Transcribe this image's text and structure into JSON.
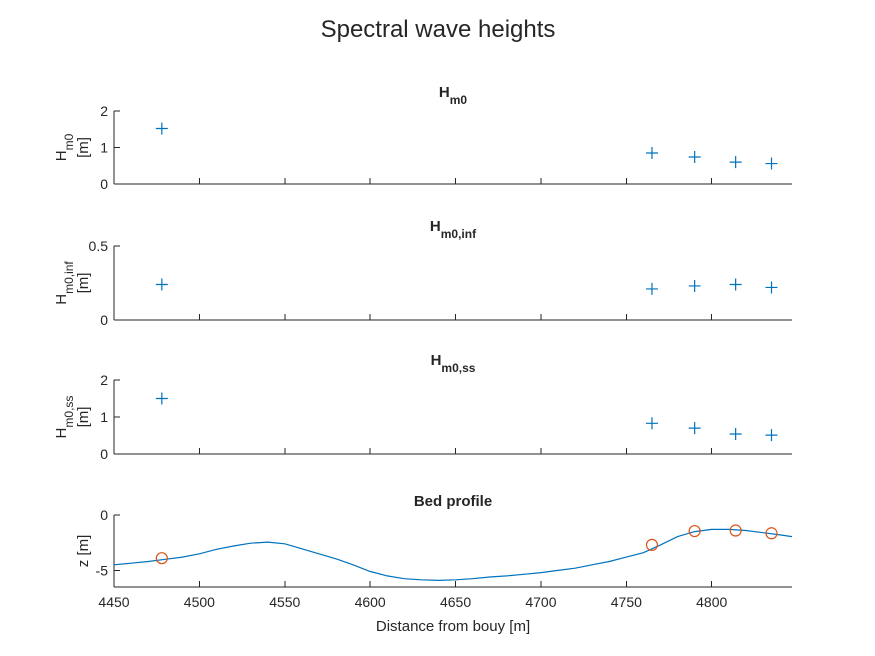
{
  "chart_data": {
    "suptitle": "Spectral wave heights",
    "xlabel": "Distance from bouy [m]",
    "xlim": [
      4450,
      4847
    ],
    "xticks": [
      4450,
      4500,
      4550,
      4600,
      4650,
      4700,
      4750,
      4800
    ],
    "colors": {
      "series": "#0072BD",
      "markers": "#D95319"
    },
    "subplots": [
      {
        "type": "scatter",
        "title_main": "H",
        "title_sub": "m0",
        "ylabel_main": "H",
        "ylabel_sub": "m0",
        "ylabel_unit": "[m]",
        "ylim": [
          0,
          2
        ],
        "yticks": [
          0,
          1,
          2
        ],
        "x": [
          4478,
          4765,
          4790,
          4814,
          4835
        ],
        "y": [
          1.52,
          0.85,
          0.74,
          0.6,
          0.56
        ]
      },
      {
        "type": "scatter",
        "title_main": "H",
        "title_sub": "m0,inf",
        "ylabel_main": "H",
        "ylabel_sub": "m0,inf",
        "ylabel_unit": "[m]",
        "ylim": [
          0,
          0.5
        ],
        "yticks": [
          0,
          0.5
        ],
        "x": [
          4478,
          4765,
          4790,
          4814,
          4835
        ],
        "y": [
          0.24,
          0.21,
          0.23,
          0.24,
          0.22
        ]
      },
      {
        "type": "scatter",
        "title_main": "H",
        "title_sub": "m0,ss",
        "ylabel_main": "H",
        "ylabel_sub": "m0,ss",
        "ylabel_unit": "[m]",
        "ylim": [
          0,
          2
        ],
        "yticks": [
          0,
          1,
          2
        ],
        "x": [
          4478,
          4765,
          4790,
          4814,
          4835
        ],
        "y": [
          1.5,
          0.83,
          0.7,
          0.54,
          0.51
        ]
      },
      {
        "type": "line",
        "title_main": "Bed profile",
        "title_sub": "",
        "ylabel_main": "z [m]",
        "ylabel_sub": "",
        "ylabel_unit": "",
        "ylim": [
          -6.5,
          0
        ],
        "yticks": [
          -5,
          0
        ],
        "line_x": [
          4450,
          4460,
          4470,
          4480,
          4490,
          4500,
          4510,
          4520,
          4530,
          4540,
          4550,
          4560,
          4570,
          4580,
          4590,
          4600,
          4610,
          4620,
          4630,
          4640,
          4650,
          4660,
          4670,
          4680,
          4690,
          4700,
          4710,
          4720,
          4730,
          4740,
          4750,
          4760,
          4770,
          4780,
          4790,
          4800,
          4810,
          4820,
          4830,
          4840,
          4847
        ],
        "line_y": [
          -4.5,
          -4.35,
          -4.2,
          -4.0,
          -3.8,
          -3.5,
          -3.1,
          -2.8,
          -2.55,
          -2.45,
          -2.6,
          -3.05,
          -3.5,
          -3.95,
          -4.5,
          -5.1,
          -5.5,
          -5.75,
          -5.85,
          -5.9,
          -5.85,
          -5.75,
          -5.6,
          -5.5,
          -5.35,
          -5.2,
          -5.0,
          -4.8,
          -4.5,
          -4.2,
          -3.8,
          -3.4,
          -2.7,
          -1.95,
          -1.5,
          -1.3,
          -1.3,
          -1.4,
          -1.6,
          -1.8,
          -1.95
        ],
        "markers_x": [
          4478,
          4765,
          4790,
          4814,
          4835
        ],
        "markers_y": [
          -3.9,
          -2.7,
          -1.45,
          -1.4,
          -1.65
        ]
      }
    ]
  }
}
